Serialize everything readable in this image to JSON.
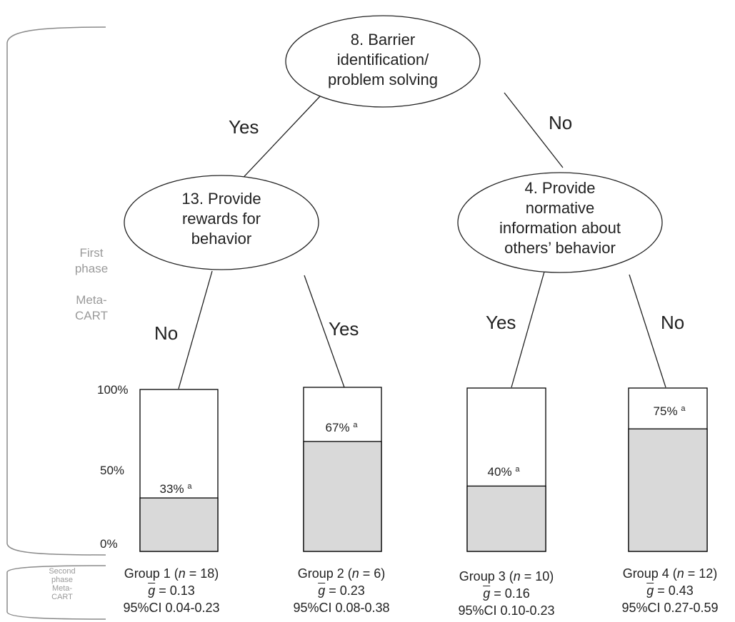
{
  "phase_labels": {
    "first": "First\nphase\n\nMeta-\nCART",
    "second": "Second\nphase\nMeta-\nCART"
  },
  "tree": {
    "root": {
      "label": "8. Barrier\nidentification/\nproblem solving"
    },
    "left": {
      "label": "13. Provide\nrewards for\nbehavior"
    },
    "right": {
      "label": "4. Provide\nnormative\ninformation about\nothers’ behavior"
    },
    "edges": {
      "root_left": "Yes",
      "root_right": "No",
      "left_g1": "No",
      "left_g2": "Yes",
      "right_g3": "Yes",
      "right_g4": "No"
    }
  },
  "axis_labels": [
    "100%",
    "50%",
    "0%"
  ],
  "chart_data": {
    "type": "bar",
    "categories": [
      "Group 1",
      "Group 2",
      "Group 3",
      "Group 4"
    ],
    "values": [
      33,
      67,
      40,
      75
    ],
    "value_labels": [
      "33%",
      "67%",
      "40%",
      "75%"
    ],
    "label_superscript": "a",
    "ylim": [
      0,
      100
    ],
    "fill_color": "#d9d9d9",
    "outline_color": "#000000"
  },
  "groups": [
    {
      "name": "Group 1",
      "n": "18",
      "g": "0.13",
      "ci": "95%CI 0.04-0.23"
    },
    {
      "name": "Group 2",
      "n": "6",
      "g": "0.23",
      "ci": "95%CI 0.08-0.38"
    },
    {
      "name": "Group 3",
      "n": "10",
      "g": "0.16",
      "ci": "95%CI 0.10-0.23"
    },
    {
      "name": "Group 4",
      "n": "12",
      "g": "0.43",
      "ci": "95%CI 0.27-0.59"
    }
  ]
}
